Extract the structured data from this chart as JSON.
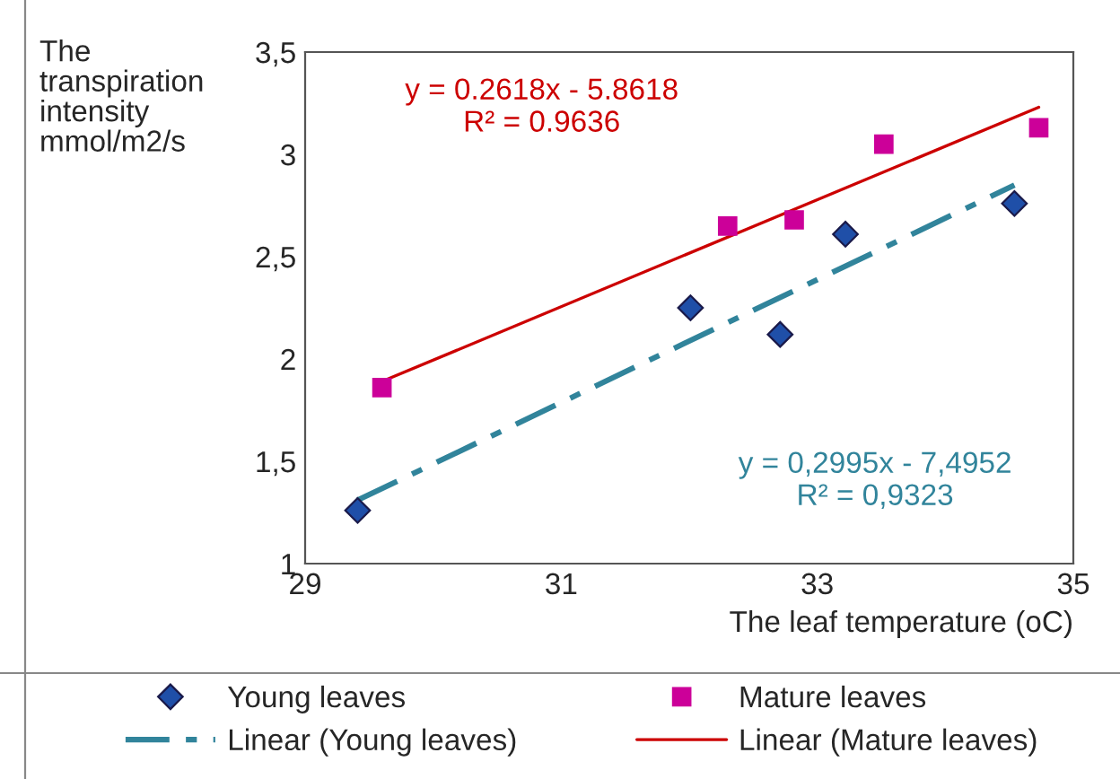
{
  "chart_data": {
    "type": "scatter",
    "ylabel": "The\ntranspiration\nintensity\nmmol/m2/s",
    "xlabel": "The leaf temperature (oC)",
    "xlim": [
      29,
      35
    ],
    "xticks": [
      29,
      31,
      33,
      35
    ],
    "ylim": [
      1,
      3.5
    ],
    "yticks": [
      {
        "value": 1,
        "label": "1"
      },
      {
        "value": 1.5,
        "label": "1,5"
      },
      {
        "value": 2,
        "label": "2"
      },
      {
        "value": 2.5,
        "label": "2,5"
      },
      {
        "value": 3,
        "label": "3"
      },
      {
        "value": 3.5,
        "label": "3,5"
      }
    ],
    "grid": false,
    "legend": "bottom",
    "series": [
      {
        "name": "Young leaves",
        "marker": "diamond",
        "color": "#1f4fa8",
        "x": [
          29.41,
          32.01,
          32.71,
          33.22,
          34.54
        ],
        "values": [
          1.26,
          2.25,
          2.12,
          2.61,
          2.76
        ]
      },
      {
        "name": "Mature leaves",
        "marker": "square",
        "color": "#cc0099",
        "x": [
          29.6,
          32.3,
          32.82,
          33.52,
          34.73
        ],
        "values": [
          1.86,
          2.65,
          2.68,
          3.05,
          3.13
        ]
      },
      {
        "name": "Linear (Young leaves)",
        "type": "line",
        "line_style": "dashdot",
        "color": "#31849b",
        "x": [
          29.41,
          34.54
        ],
        "values": [
          1.31,
          2.85
        ]
      },
      {
        "name": "Linear (Mature leaves)",
        "type": "line",
        "line_style": "solid",
        "color": "#cc0000",
        "x": [
          29.6,
          34.73
        ],
        "values": [
          1.89,
          3.23
        ]
      }
    ],
    "annotations": [
      "y = 0.2618x - 5.8618\nR² = 0.9636",
      "y = 0,2995x - 7,4952\nR² = 0,9323"
    ]
  }
}
